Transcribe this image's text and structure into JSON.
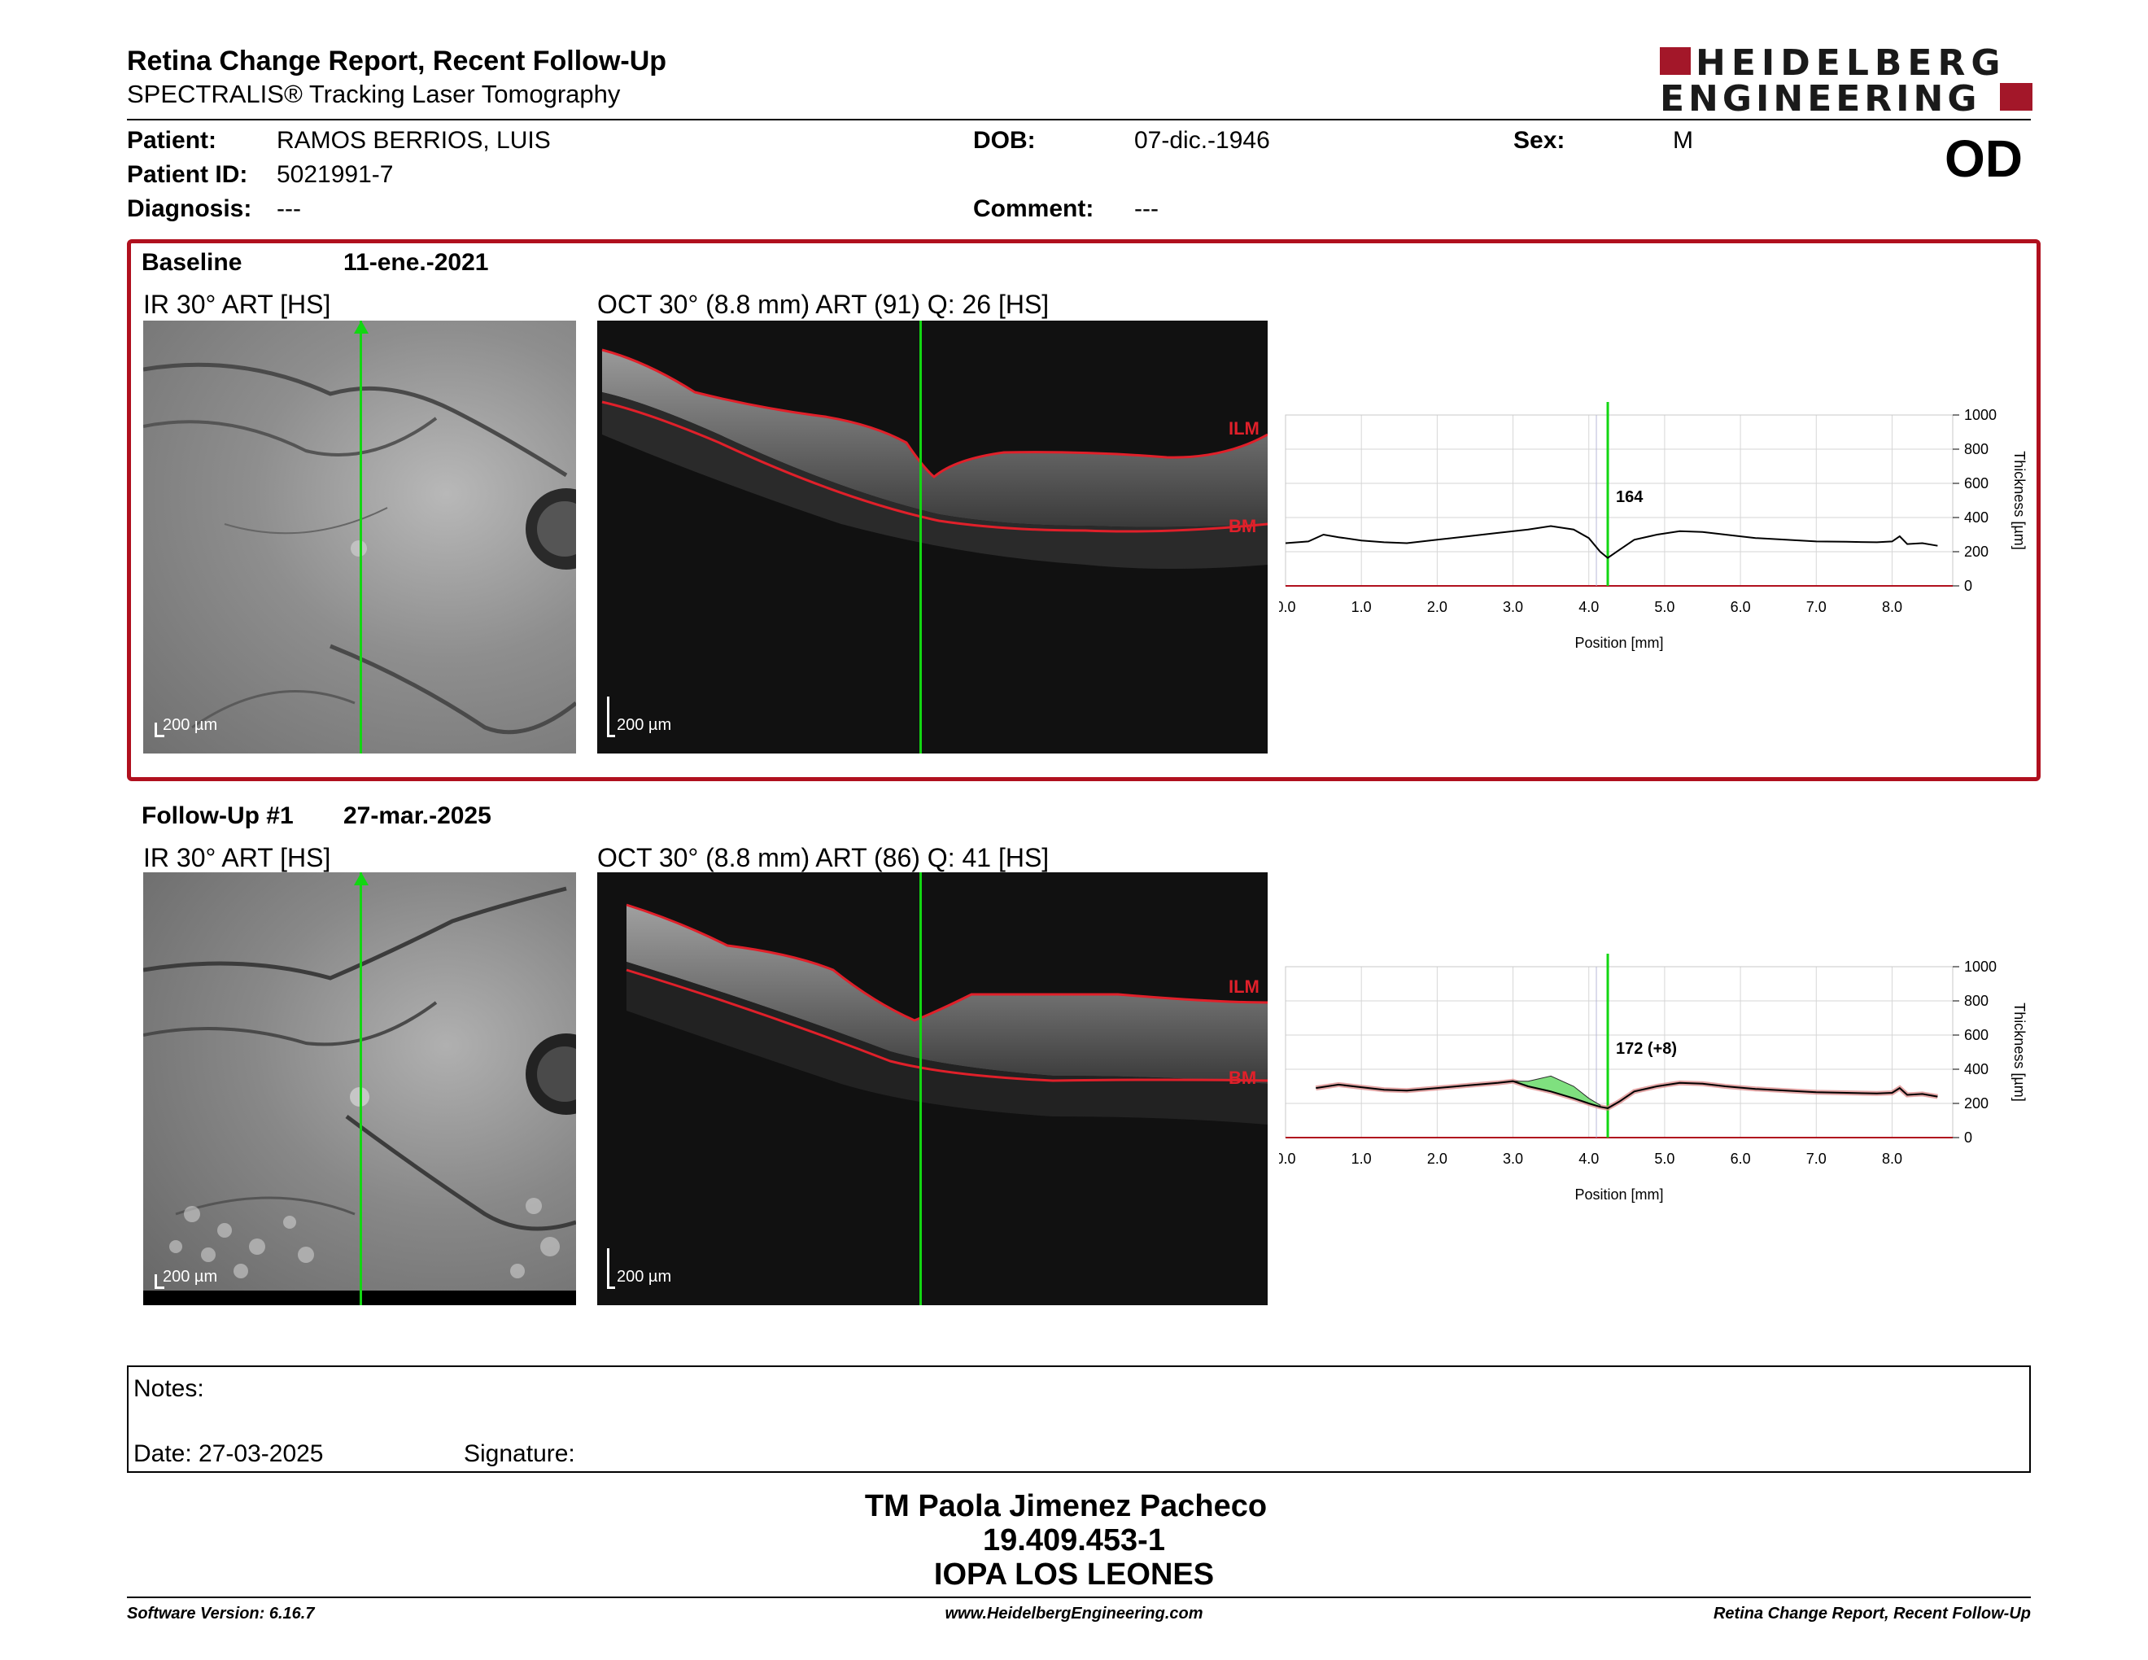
{
  "header": {
    "title": "Retina Change Report, Recent Follow-Up",
    "subtitle": "SPECTRALIS® Tracking Laser Tomography",
    "logo_line1": "HEIDELBERG",
    "logo_line2": "ENGINEERING",
    "eye": "OD"
  },
  "patient": {
    "patient_label": "Patient:",
    "patient_value": "RAMOS BERRIOS, LUIS",
    "id_label": "Patient ID:",
    "id_value": "5021991-7",
    "diagnosis_label": "Diagnosis:",
    "diagnosis_value": "---",
    "dob_label": "DOB:",
    "dob_value": "07-dic.-1946",
    "comment_label": "Comment:",
    "comment_value": "---",
    "sex_label": "Sex:",
    "sex_value": "M"
  },
  "baseline": {
    "label": "Baseline",
    "date": "11-ene.-2021",
    "ir_title": "IR 30° ART [HS]",
    "oct_title": "OCT 30° (8.8 mm) ART (91) Q: 26 [HS]",
    "ir_scale": "200 µm",
    "oct_scale": "200 µm",
    "ilm_label": "ILM",
    "bm_label": "BM",
    "chart_value_label": "164"
  },
  "followup": {
    "label": "Follow-Up #1",
    "date": "27-mar.-2025",
    "ir_title": "IR 30° ART [HS]",
    "oct_title": "OCT 30° (8.8 mm) ART (86) Q: 41 [HS]",
    "ir_scale": "200 µm",
    "oct_scale": "200 µm",
    "ilm_label": "ILM",
    "bm_label": "BM",
    "chart_value_label": "172 (+8)"
  },
  "notes": {
    "notes_label": "Notes:",
    "date_label": "Date: 27-03-2025",
    "signature_label": "Signature:"
  },
  "signer": {
    "name": "TM Paola Jimenez Pacheco",
    "id": "19.409.453-1",
    "org": "IOPA LOS LEONES"
  },
  "footer": {
    "software": "Software Version: 6.16.7",
    "website": "www.HeidelbergEngineering.com",
    "report": "Retina Change Report, Recent Follow-Up"
  },
  "colors": {
    "brand_red": "#a31729",
    "marker_green": "#12d612",
    "layer_red": "#e0202a"
  },
  "chart_data": [
    {
      "type": "line",
      "xlabel": "Position [mm]",
      "ylabel": "Thickness [µm]",
      "xlim": [
        0,
        8.8
      ],
      "ylim": [
        0,
        1000
      ],
      "x_ticks": [
        "0.0",
        "1.0",
        "2.0",
        "3.0",
        "4.0",
        "5.0",
        "6.0",
        "7.0",
        "8.0"
      ],
      "y_ticks": [
        "0",
        "200",
        "400",
        "600",
        "800",
        "1000"
      ],
      "grid": true,
      "marker_x": 4.25,
      "marker_label": "164",
      "series": [
        {
          "x": [
            0.0,
            0.3,
            0.5,
            0.7,
            1.0,
            1.3,
            1.6,
            2.0,
            2.4,
            2.8,
            3.2,
            3.5,
            3.8,
            4.0,
            4.15,
            4.25,
            4.4,
            4.6,
            4.9,
            5.2,
            5.5,
            5.8,
            6.2,
            6.6,
            7.0,
            7.4,
            7.8,
            8.0,
            8.1,
            8.2,
            8.4,
            8.6
          ],
          "values": [
            250,
            260,
            300,
            285,
            265,
            255,
            250,
            270,
            290,
            310,
            330,
            350,
            330,
            280,
            200,
            164,
            210,
            270,
            300,
            320,
            315,
            300,
            280,
            270,
            260,
            258,
            255,
            260,
            290,
            245,
            250,
            235
          ]
        }
      ]
    },
    {
      "type": "line",
      "xlabel": "Position [mm]",
      "ylabel": "Thickness [µm]",
      "xlim": [
        0,
        8.8
      ],
      "ylim": [
        0,
        1000
      ],
      "x_ticks": [
        "0.0",
        "1.0",
        "2.0",
        "3.0",
        "4.0",
        "5.0",
        "6.0",
        "7.0",
        "8.0"
      ],
      "y_ticks": [
        "0",
        "200",
        "400",
        "600",
        "800",
        "1000"
      ],
      "grid": true,
      "marker_x": 4.25,
      "marker_label": "172 (+8)",
      "series": [
        {
          "x": [
            0.4,
            0.7,
            1.0,
            1.3,
            1.6,
            2.0,
            2.4,
            2.8,
            3.0,
            3.2,
            3.5,
            3.8,
            4.0,
            4.15,
            4.25,
            4.4,
            4.6,
            4.9,
            5.2,
            5.5,
            5.8,
            6.2,
            6.6,
            7.0,
            7.4,
            7.8,
            8.0,
            8.1,
            8.2,
            8.4,
            8.6
          ],
          "values": [
            290,
            310,
            295,
            280,
            275,
            290,
            305,
            320,
            330,
            300,
            270,
            230,
            200,
            180,
            172,
            210,
            270,
            300,
            320,
            315,
            300,
            285,
            275,
            265,
            262,
            258,
            262,
            290,
            250,
            255,
            240
          ]
        }
      ]
    }
  ]
}
